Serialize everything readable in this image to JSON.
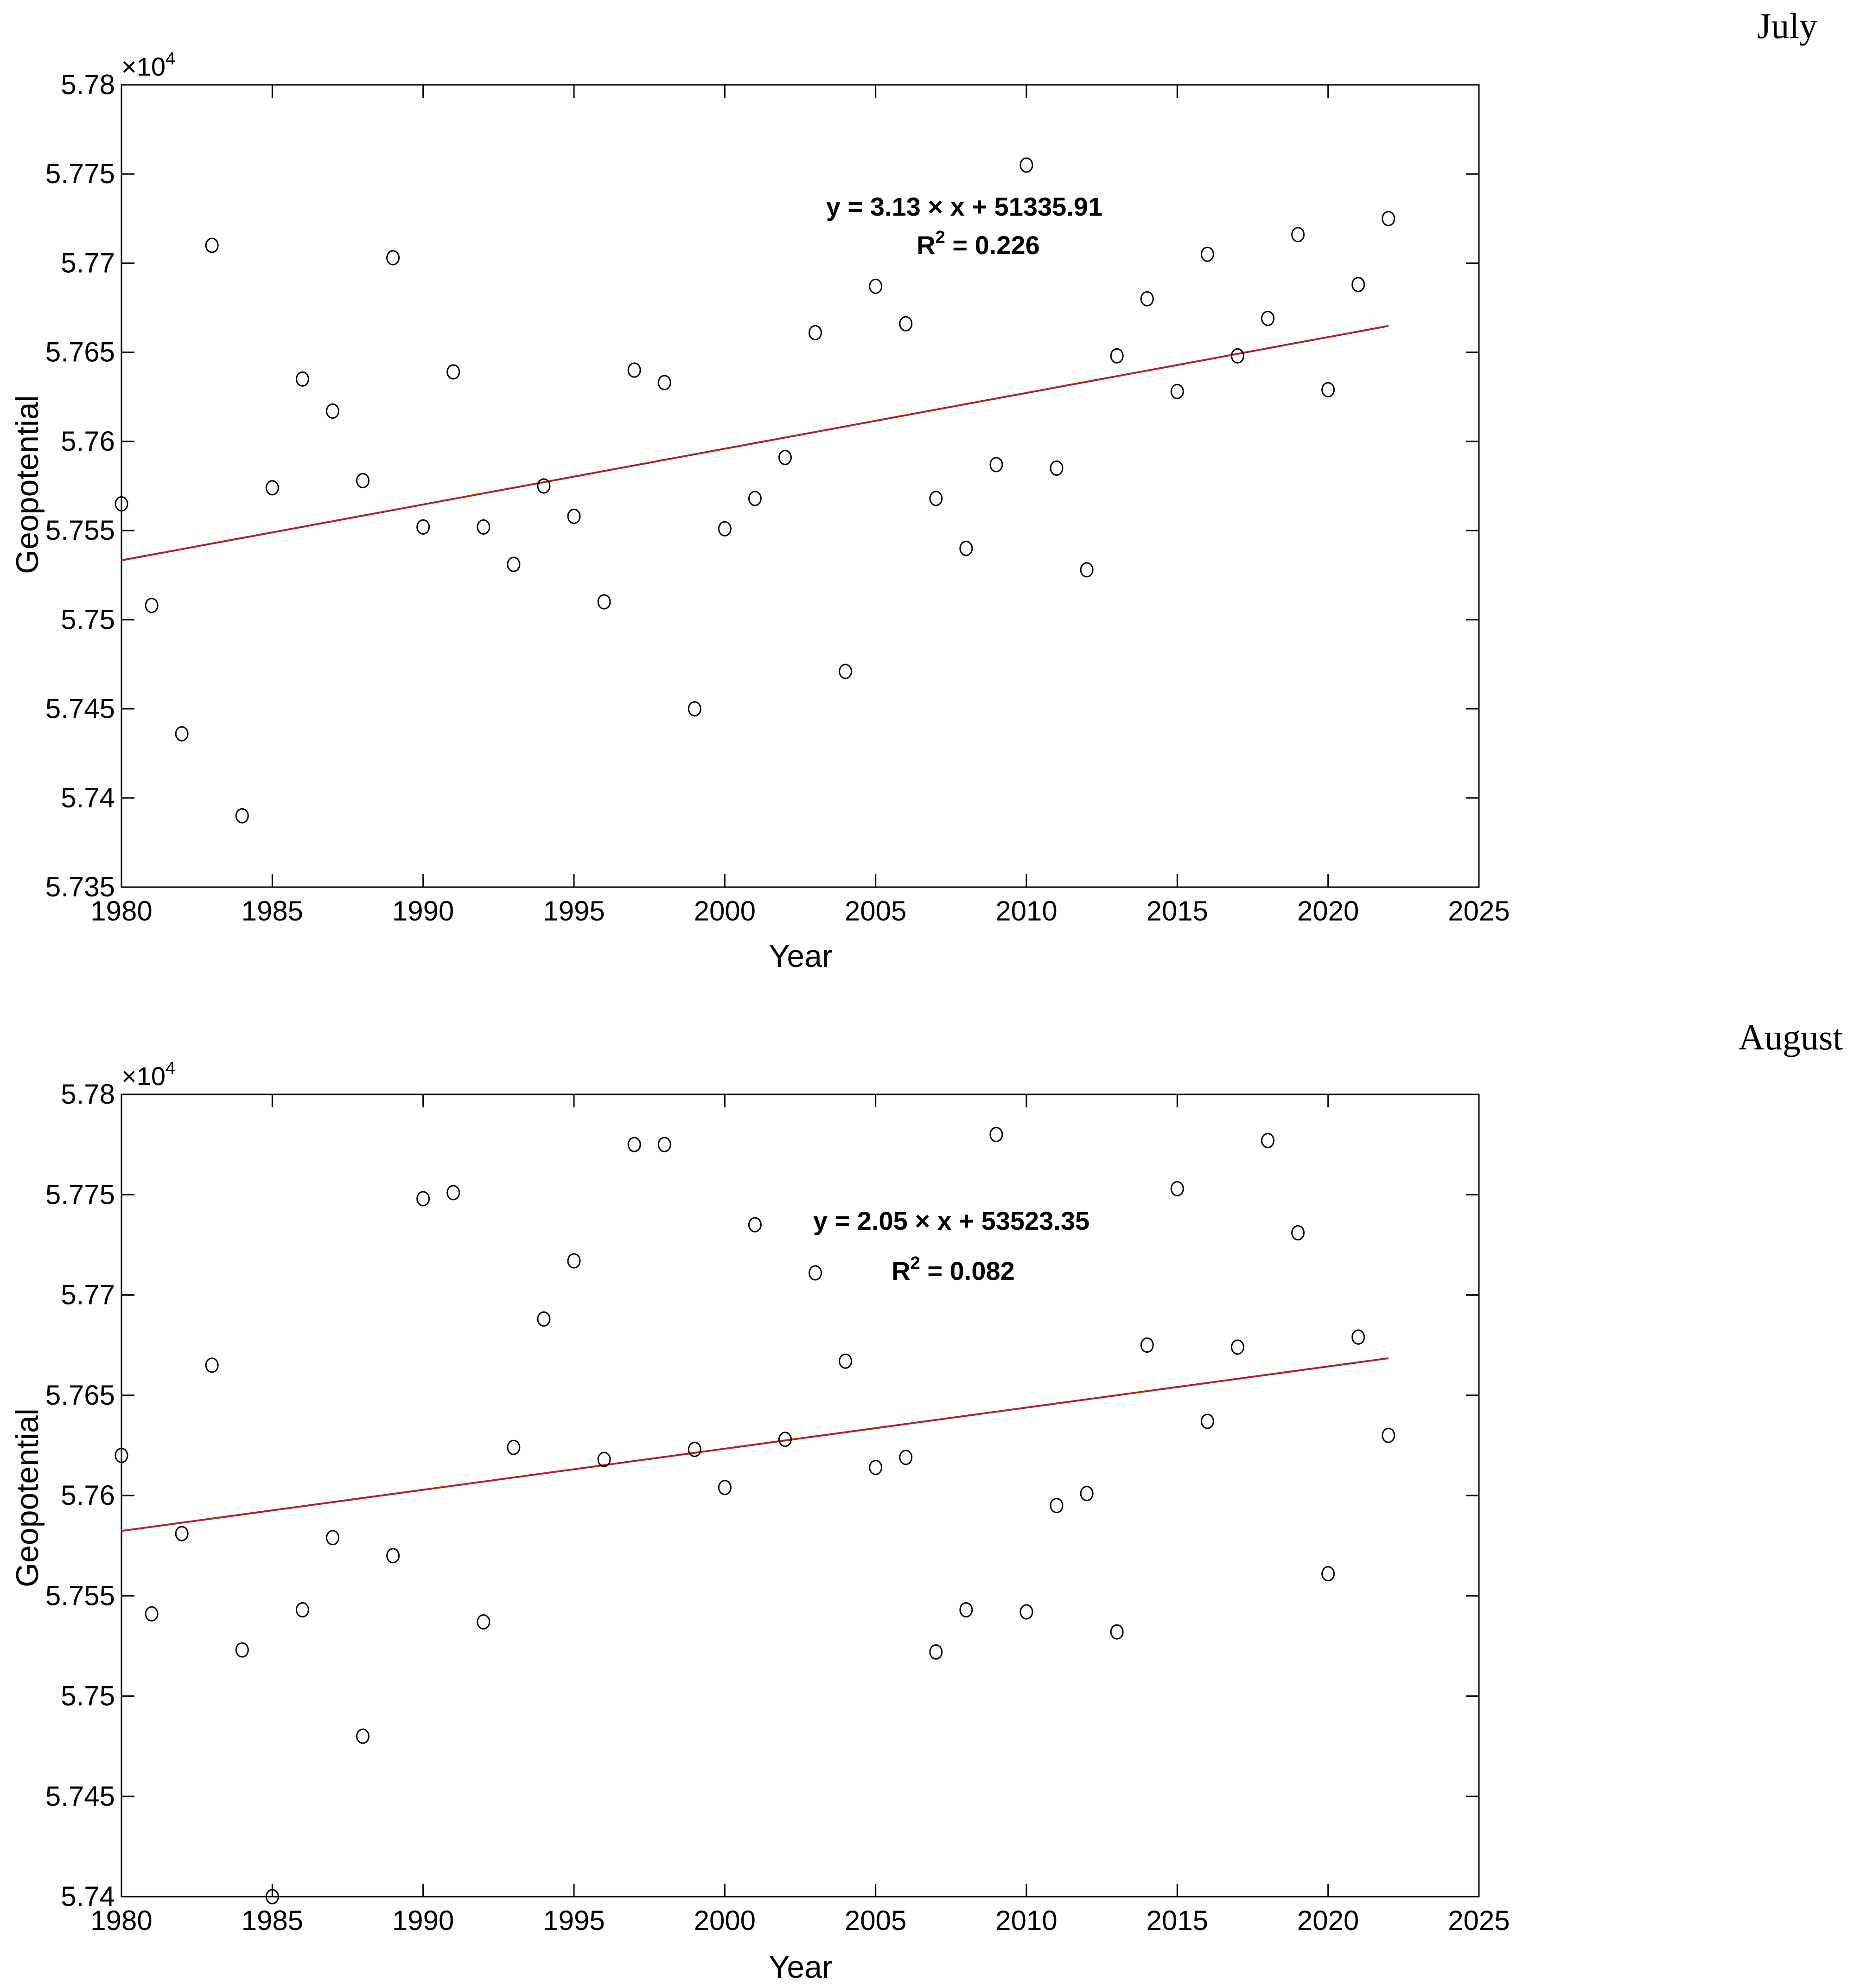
{
  "chart_data": [
    {
      "type": "scatter",
      "title": "July",
      "xlabel": "Year",
      "ylabel": "Geopotential",
      "y_multiplier": {
        "base": "×10",
        "exponent": "4"
      },
      "xlim": [
        1980,
        2025
      ],
      "ylim": [
        57350,
        57800
      ],
      "xticks": [
        "1980",
        "1985",
        "1990",
        "1995",
        "2000",
        "2005",
        "2010",
        "2015",
        "2020",
        "2025"
      ],
      "yticks": [
        "5.735",
        "5.74",
        "5.745",
        "5.75",
        "5.755",
        "5.76",
        "5.765",
        "5.77",
        "5.775",
        "5.78"
      ],
      "grid": false,
      "marker": "open-circle",
      "trend_color": "#b22222",
      "annotation": {
        "equation": "y = 3.13 × x + 51335.91",
        "r2_prefix": "R",
        "r2_exp": "2",
        "r2_suffix": " = 0.226"
      },
      "trend": {
        "slope": 3.13,
        "intercept": 51335.91,
        "x_start": 1980,
        "x_end": 2022
      },
      "x": [
        1980,
        1981,
        1982,
        1983,
        1984,
        1985,
        1986,
        1987,
        1988,
        1989,
        1990,
        1991,
        1992,
        1993,
        1994,
        1995,
        1996,
        1997,
        1998,
        1999,
        2000,
        2001,
        2002,
        2003,
        2004,
        2005,
        2006,
        2007,
        2008,
        2009,
        2010,
        2011,
        2012,
        2013,
        2014,
        2015,
        2016,
        2017,
        2018,
        2019,
        2020,
        2021,
        2022
      ],
      "y": [
        57565,
        57508,
        57436,
        57710,
        57390,
        57574,
        57635,
        57617,
        57578,
        57703,
        57552,
        57639,
        57552,
        57531,
        57575,
        57558,
        57510,
        57640,
        57633,
        57450,
        57551,
        57568,
        57591,
        57661,
        57471,
        57687,
        57666,
        57568,
        57540,
        57587,
        57755,
        57585,
        57528,
        57648,
        57680,
        57628,
        57705,
        57648,
        57669,
        57716,
        57629,
        57688,
        57725
      ]
    },
    {
      "type": "scatter",
      "title": "August",
      "xlabel": "Year",
      "ylabel": "Geopotential",
      "y_multiplier": {
        "base": "×10",
        "exponent": "4"
      },
      "xlim": [
        1980,
        2025
      ],
      "ylim": [
        57400,
        57800
      ],
      "xticks": [
        "1980",
        "1985",
        "1990",
        "1995",
        "2000",
        "2005",
        "2010",
        "2015",
        "2020",
        "2025"
      ],
      "yticks": [
        "5.74",
        "5.745",
        "5.75",
        "5.755",
        "5.76",
        "5.765",
        "5.77",
        "5.775",
        "5.78"
      ],
      "grid": false,
      "marker": "open-circle",
      "trend_color": "#b22222",
      "annotation": {
        "equation": "y = 2.05 × x + 53523.35",
        "r2_prefix": "R",
        "r2_exp": "2",
        "r2_suffix": " = 0.082"
      },
      "trend": {
        "slope": 2.05,
        "intercept": 53523.35,
        "x_start": 1980,
        "x_end": 2022
      },
      "x": [
        1980,
        1981,
        1982,
        1983,
        1984,
        1985,
        1986,
        1987,
        1988,
        1989,
        1990,
        1991,
        1992,
        1993,
        1994,
        1995,
        1996,
        1997,
        1998,
        1999,
        2000,
        2001,
        2002,
        2003,
        2004,
        2005,
        2006,
        2007,
        2008,
        2009,
        2010,
        2011,
        2012,
        2013,
        2014,
        2015,
        2016,
        2017,
        2018,
        2019,
        2020,
        2021,
        2022
      ],
      "y": [
        57620,
        57541,
        57581,
        57665,
        57523,
        57400,
        57543,
        57579,
        57480,
        57570,
        57748,
        57751,
        57537,
        57624,
        57688,
        57717,
        57618,
        57775,
        57775,
        57623,
        57604,
        57735,
        57628,
        57711,
        57667,
        57614,
        57619,
        57522,
        57543,
        57780,
        57542,
        57595,
        57601,
        57532,
        57675,
        57753,
        57637,
        57674,
        57777,
        57731,
        57561,
        57679,
        57630
      ]
    }
  ]
}
